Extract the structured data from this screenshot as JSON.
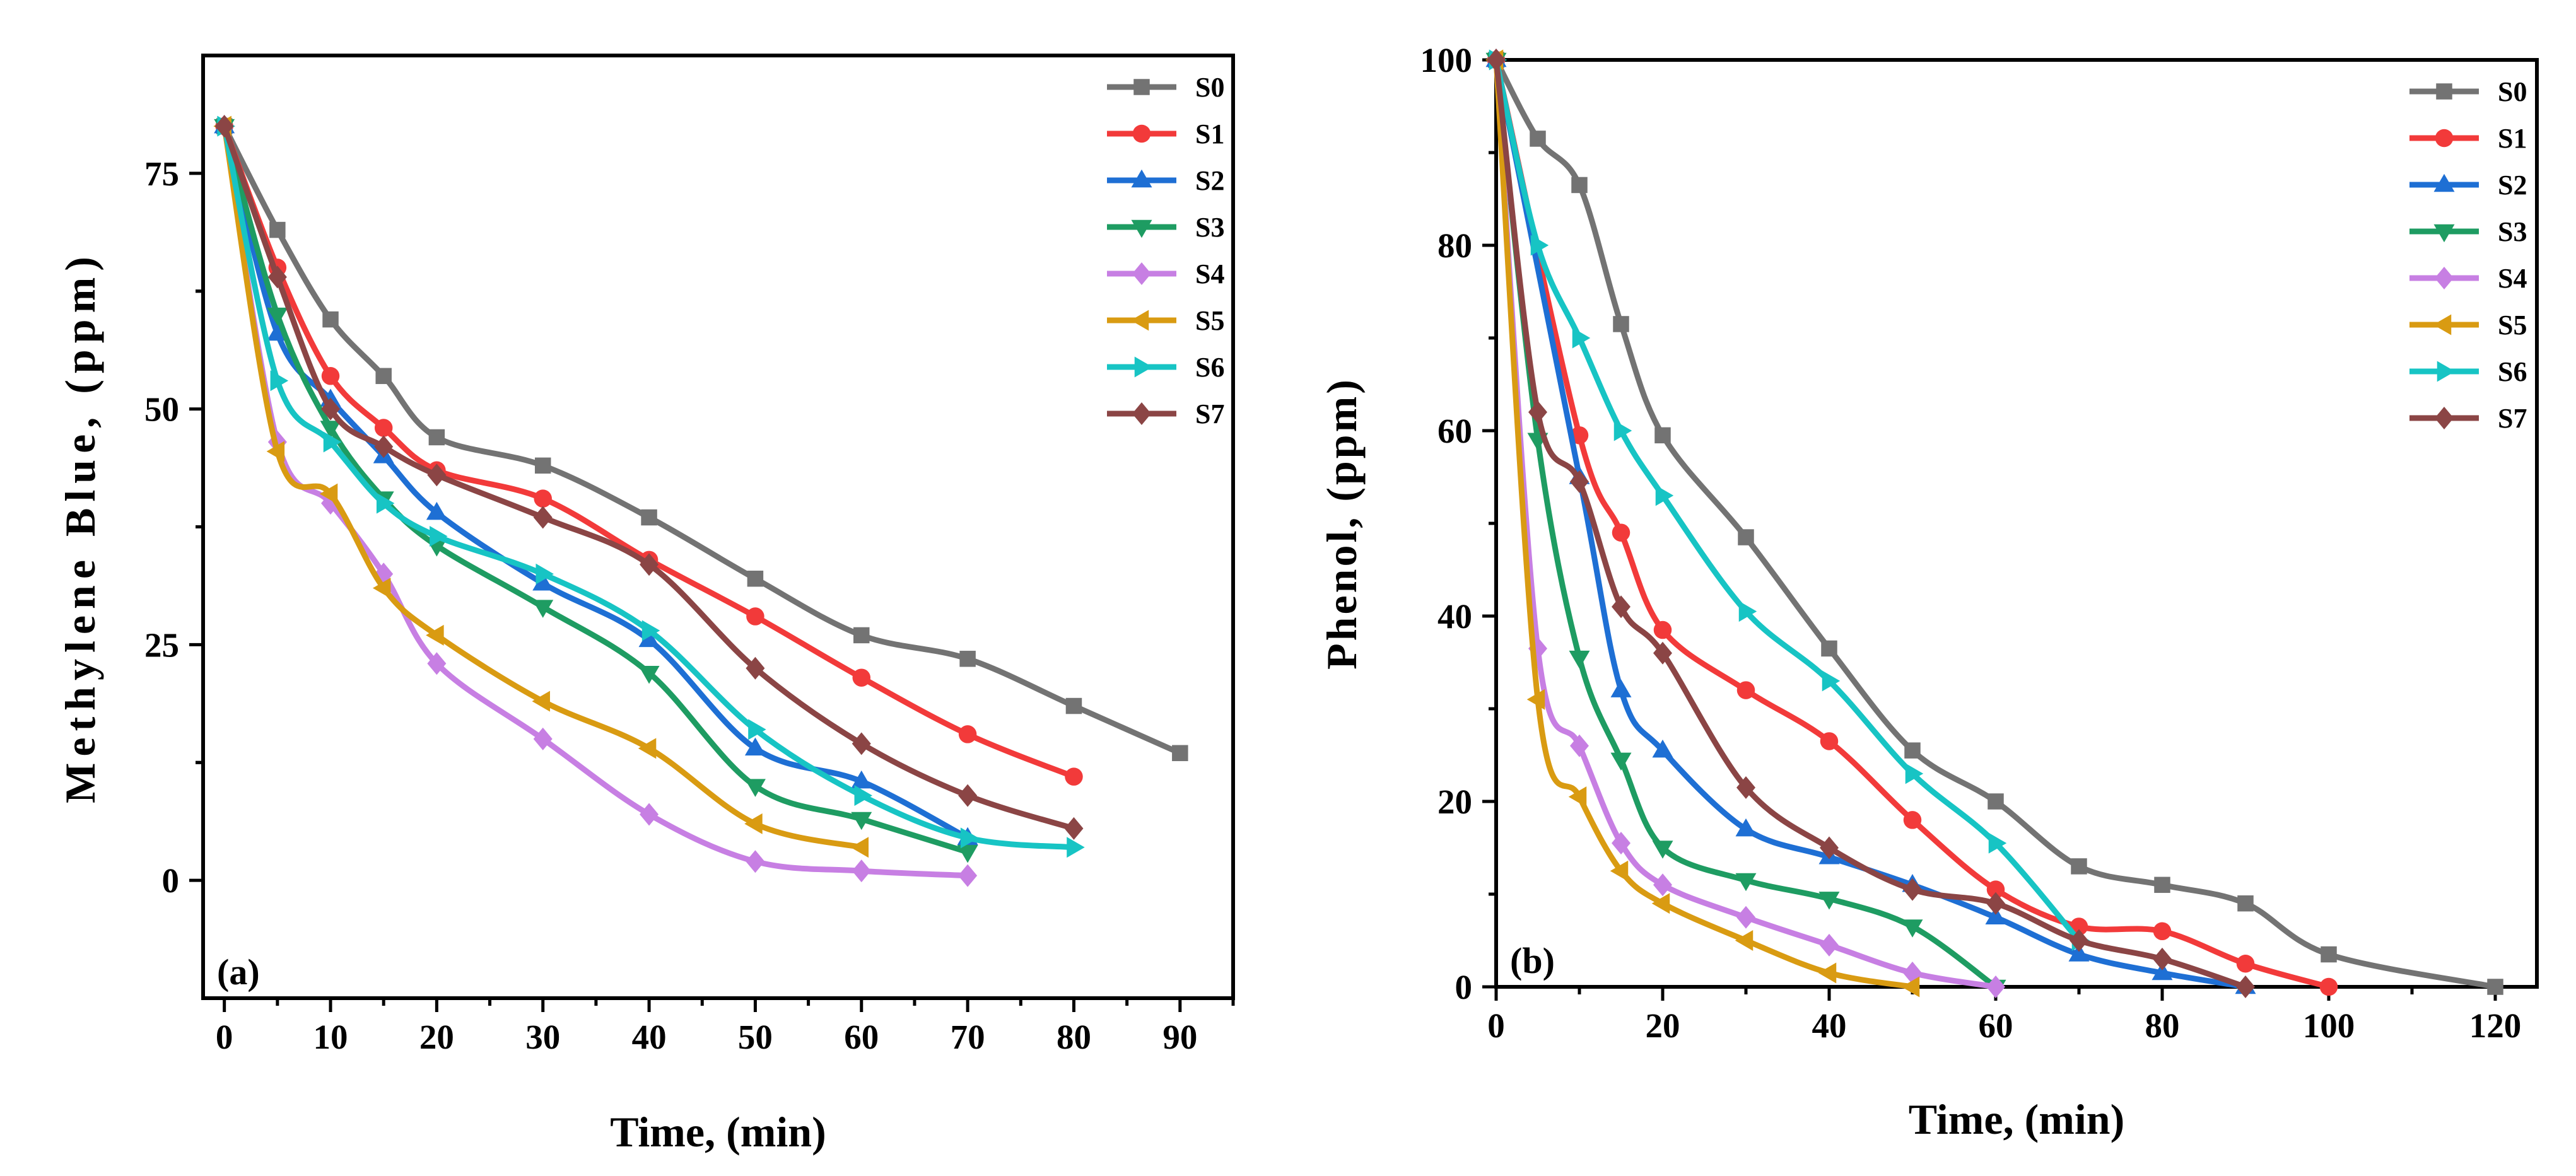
{
  "chart_data": [
    {
      "type": "line",
      "panel_label": "(a)",
      "xlabel": "Time, (min)",
      "ylabel": "Methylene Blue, (ppm)",
      "xlim": [
        -2,
        95
      ],
      "ylim": [
        -12.5,
        87.5
      ],
      "xticks": [
        0,
        10,
        20,
        30,
        40,
        50,
        60,
        70,
        80,
        90
      ],
      "xtick_labels": [
        "0",
        "10",
        "20",
        "30",
        "40",
        "50",
        "60",
        "70",
        "80",
        "90"
      ],
      "yticks": [
        0,
        25,
        50,
        75
      ],
      "ytick_labels": [
        "0",
        "25",
        "50",
        "75"
      ],
      "legend_position": "top-right",
      "series": [
        {
          "name": "S0",
          "color": "#737373",
          "marker": "square",
          "x": [
            0,
            5,
            10,
            15,
            20,
            30,
            40,
            50,
            60,
            70,
            80,
            90
          ],
          "y": [
            80,
            69,
            59.5,
            53.5,
            47,
            44,
            38.5,
            32,
            26,
            23.5,
            18.5,
            13.5
          ]
        },
        {
          "name": "S1",
          "color": "#f23a3a",
          "marker": "circle",
          "x": [
            0,
            5,
            10,
            15,
            20,
            30,
            40,
            50,
            60,
            70,
            80
          ],
          "y": [
            80,
            65,
            53.5,
            48,
            43.5,
            40.5,
            34,
            28,
            21.5,
            15.5,
            11
          ]
        },
        {
          "name": "S2",
          "color": "#1e6fd4",
          "marker": "triangle-up",
          "x": [
            0,
            5,
            10,
            15,
            20,
            30,
            40,
            50,
            60,
            70
          ],
          "y": [
            80,
            58,
            51,
            45,
            39,
            31.5,
            25.5,
            14,
            10.5,
            4.5
          ]
        },
        {
          "name": "S3",
          "color": "#1e9c62",
          "marker": "triangle-down",
          "x": [
            0,
            5,
            10,
            15,
            20,
            30,
            40,
            50,
            60,
            70
          ],
          "y": [
            80,
            60,
            48,
            40.5,
            35.5,
            29,
            22,
            10,
            6.5,
            3
          ]
        },
        {
          "name": "S4",
          "color": "#c77fe3",
          "marker": "diamond",
          "x": [
            0,
            5,
            10,
            15,
            20,
            30,
            40,
            50,
            60,
            70
          ],
          "y": [
            80,
            46.5,
            40,
            32.5,
            23,
            15,
            7,
            2,
            1,
            0.5
          ]
        },
        {
          "name": "S5",
          "color": "#d99b12",
          "marker": "triangle-left",
          "x": [
            0,
            5,
            10,
            15,
            20,
            30,
            40,
            50,
            60
          ],
          "y": [
            80,
            45.5,
            41,
            31,
            26,
            19,
            14,
            6,
            3.5
          ]
        },
        {
          "name": "S6",
          "color": "#17c4c4",
          "marker": "triangle-right",
          "x": [
            0,
            5,
            10,
            15,
            20,
            30,
            40,
            50,
            60,
            70,
            80
          ],
          "y": [
            80,
            53,
            46.5,
            40,
            36.5,
            32.5,
            26.5,
            16,
            9,
            4.5,
            3.5
          ]
        },
        {
          "name": "S7",
          "color": "#8b4545",
          "marker": "diamond",
          "x": [
            0,
            5,
            10,
            15,
            20,
            30,
            40,
            50,
            60,
            70,
            80
          ],
          "y": [
            80,
            64,
            50,
            46,
            43,
            38.5,
            33.5,
            22.5,
            14.5,
            9,
            5.5
          ]
        }
      ]
    },
    {
      "type": "line",
      "panel_label": "(b)",
      "xlabel": "Time, (min)",
      "ylabel": "Phenol, (ppm)",
      "xlim": [
        0,
        125
      ],
      "ylim": [
        0,
        100
      ],
      "xticks": [
        0,
        20,
        40,
        60,
        80,
        100,
        120
      ],
      "xtick_labels": [
        "0",
        "20",
        "40",
        "60",
        "80",
        "100",
        "120"
      ],
      "yticks": [
        0,
        20,
        40,
        60,
        80,
        100
      ],
      "ytick_labels": [
        "0",
        "20",
        "40",
        "60",
        "80",
        "100"
      ],
      "legend_position": "top-right",
      "series": [
        {
          "name": "S0",
          "color": "#737373",
          "marker": "square",
          "x": [
            0,
            5,
            10,
            15,
            20,
            30,
            40,
            50,
            60,
            70,
            80,
            90,
            100,
            120
          ],
          "y": [
            100,
            91.5,
            86.5,
            71.5,
            59.5,
            48.5,
            36.5,
            25.5,
            20,
            13,
            11,
            9,
            3.5,
            0
          ]
        },
        {
          "name": "S1",
          "color": "#f23a3a",
          "marker": "circle",
          "x": [
            0,
            10,
            15,
            20,
            30,
            40,
            50,
            60,
            70,
            80,
            90,
            100
          ],
          "y": [
            100,
            59.5,
            49,
            38.5,
            32,
            26.5,
            18,
            10.5,
            6.5,
            6,
            2.5,
            0
          ]
        },
        {
          "name": "S2",
          "color": "#1e6fd4",
          "marker": "triangle-up",
          "x": [
            0,
            10,
            15,
            20,
            30,
            40,
            50,
            60,
            70,
            80,
            90
          ],
          "y": [
            100,
            55,
            32,
            25.5,
            17,
            14,
            11,
            7.5,
            3.5,
            1.5,
            0
          ]
        },
        {
          "name": "S3",
          "color": "#1e9c62",
          "marker": "triangle-down",
          "x": [
            0,
            5,
            10,
            15,
            20,
            30,
            40,
            50,
            60
          ],
          "y": [
            100,
            59,
            35.5,
            24.5,
            15,
            11.5,
            9.5,
            6.5,
            0
          ]
        },
        {
          "name": "S4",
          "color": "#c77fe3",
          "marker": "diamond",
          "x": [
            0,
            5,
            10,
            15,
            20,
            30,
            40,
            50,
            60
          ],
          "y": [
            100,
            36.5,
            26,
            15.5,
            11,
            7.5,
            4.5,
            1.5,
            0
          ]
        },
        {
          "name": "S5",
          "color": "#d99b12",
          "marker": "triangle-left",
          "x": [
            0,
            5,
            10,
            15,
            20,
            30,
            40,
            50
          ],
          "y": [
            100,
            31,
            20.5,
            12.5,
            9,
            5,
            1.5,
            0
          ]
        },
        {
          "name": "S6",
          "color": "#17c4c4",
          "marker": "triangle-right",
          "x": [
            0,
            5,
            10,
            15,
            20,
            30,
            40,
            50,
            60,
            70
          ],
          "y": [
            100,
            80,
            70,
            60,
            53,
            40.5,
            33,
            23,
            15.5,
            5
          ]
        },
        {
          "name": "S7",
          "color": "#8b4545",
          "marker": "diamond",
          "x": [
            0,
            5,
            10,
            15,
            20,
            30,
            40,
            50,
            60,
            70,
            80,
            90
          ],
          "y": [
            100,
            62,
            54.5,
            41,
            36,
            21.5,
            15,
            10.5,
            9,
            5,
            3,
            0
          ]
        }
      ]
    }
  ]
}
